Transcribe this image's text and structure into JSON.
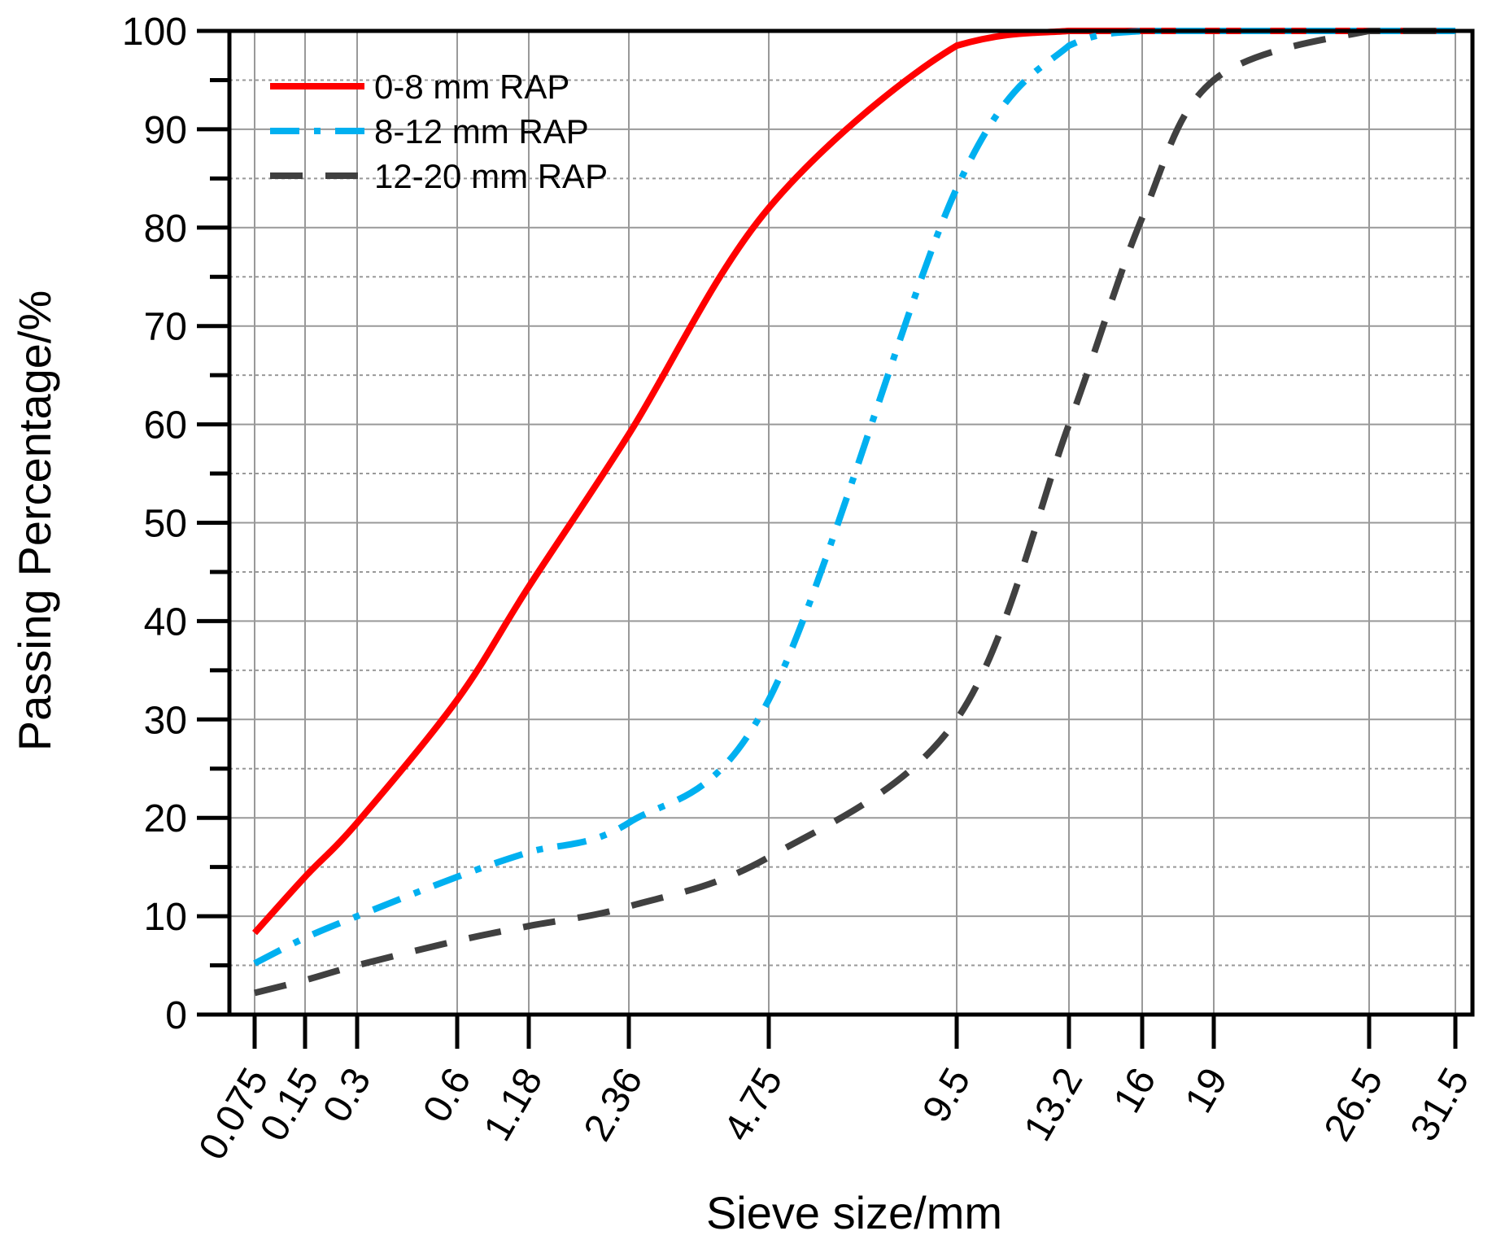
{
  "chart_data": {
    "type": "line",
    "title": "",
    "xlabel": "Sieve size/mm",
    "ylabel": "Passing Percentage/%",
    "x_scale": "categorical-sieve",
    "x_ticks": [
      "0.075",
      "0.15",
      "0.3",
      "0.6",
      "1.18",
      "2.36",
      "4.75",
      "9.5",
      "13.2",
      "16",
      "19",
      "26.5",
      "31.5"
    ],
    "ylim": [
      0,
      100
    ],
    "y_ticks": [
      "0",
      "10",
      "20",
      "30",
      "40",
      "50",
      "60",
      "70",
      "80",
      "90",
      "100"
    ],
    "grid": true,
    "legend_position": "top-left",
    "series": [
      {
        "name": "0-8 mm RAP",
        "color": "#ff0000",
        "line_style": "solid",
        "x": [
          "0.075",
          "0.15",
          "0.3",
          "0.6",
          "1.18",
          "2.36",
          "4.75",
          "9.5",
          "13.2",
          "16",
          "19",
          "26.5",
          "31.5"
        ],
        "values": [
          8.3,
          14.0,
          19.5,
          32.0,
          43.5,
          59.0,
          82.0,
          98.5,
          100,
          100,
          100,
          100,
          100
        ]
      },
      {
        "name": "8-12 mm RAP",
        "color": "#00b0f0",
        "line_style": "dash-dot",
        "x": [
          "0.075",
          "0.15",
          "0.3",
          "0.6",
          "1.18",
          "2.36",
          "4.75",
          "9.5",
          "13.2",
          "16",
          "19",
          "26.5",
          "31.5"
        ],
        "values": [
          5.2,
          7.8,
          10.0,
          14.0,
          16.5,
          19.5,
          32.0,
          84.0,
          98.5,
          100,
          100,
          100,
          100
        ]
      },
      {
        "name": "12-20 mm RAP",
        "color": "#404040",
        "line_style": "dashed",
        "x": [
          "0.075",
          "0.15",
          "0.3",
          "0.6",
          "1.18",
          "2.36",
          "4.75",
          "9.5",
          "13.2",
          "16",
          "19",
          "26.5",
          "31.5"
        ],
        "values": [
          2.2,
          3.5,
          5.0,
          7.5,
          9.0,
          11.0,
          16.0,
          30.0,
          60.0,
          81.0,
          95.0,
          100,
          100
        ]
      }
    ]
  }
}
